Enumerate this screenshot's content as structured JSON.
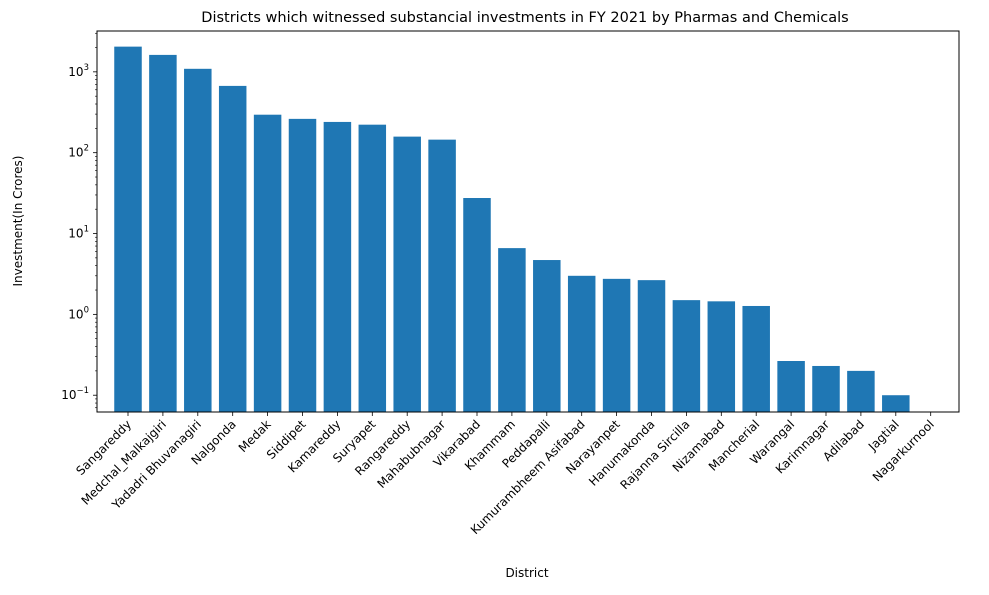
{
  "chart_data": {
    "type": "bar",
    "title": "Districts which witnessed substancial investments in FY 2021 by Pharmas and Chemicals",
    "xlabel": "District",
    "ylabel": "Investment(In Crores)",
    "yscale": "log",
    "ylim": [
      0.062,
      3200
    ],
    "yticks": [
      {
        "value": 0.1,
        "base": "10",
        "exp": "−1"
      },
      {
        "value": 1,
        "base": "10",
        "exp": "0"
      },
      {
        "value": 10,
        "base": "10",
        "exp": "1"
      },
      {
        "value": 100,
        "base": "10",
        "exp": "2"
      },
      {
        "value": 1000,
        "base": "10",
        "exp": "3"
      }
    ],
    "grid": false,
    "bar_color": "#1f77b4",
    "categories": [
      "Sangareddy",
      "Medchal_Malkajgiri",
      "Yadadri Bhuvanagiri",
      "Nalgonda",
      "Medak",
      "Siddipet",
      "Kamareddy",
      "Suryapet",
      "Rangareddy",
      "Mahabubnagar",
      "Vikarabad",
      "Khammam",
      "Peddapalli",
      "Kumurambheem Asifabad",
      "Narayanpet",
      "Hanumakonda",
      "Rajanna Sircilla",
      "Nizamabad",
      "Mancherial",
      "Warangal",
      "Karimnagar",
      "Adilabad",
      "Jagtial",
      "Nagarkurnool"
    ],
    "values": [
      2050,
      1620,
      1090,
      670,
      295,
      262,
      240,
      222,
      158,
      145,
      27.5,
      6.6,
      4.7,
      3.0,
      2.75,
      2.65,
      1.5,
      1.45,
      1.27,
      0.265,
      0.23,
      0.2,
      0.1,
      0.045
    ]
  }
}
